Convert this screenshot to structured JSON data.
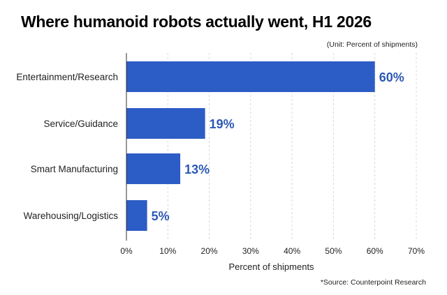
{
  "header": {
    "title": "Where humanoid robots actually went, H1 2026",
    "unit_note": "(Unit: Percent of shipments)"
  },
  "footer": {
    "source": "*Source: Counterpoint Research"
  },
  "colors": {
    "bar": "#2c5cc5",
    "data_label": "#2d58b4",
    "grid": "#d9d9d9",
    "axis": "#333333"
  },
  "chart_data": {
    "type": "bar",
    "orientation": "horizontal",
    "title": "Where humanoid robots actually went, H1 2026",
    "categories": [
      "Entertainment/Research",
      "Service/Guidance",
      "Smart Manufacturing",
      "Warehousing/Logistics"
    ],
    "values": [
      60,
      19,
      13,
      5
    ],
    "data_labels": [
      "60%",
      "19%",
      "13%",
      "5%"
    ],
    "xlabel": "Percent of shipments",
    "ylabel": "",
    "xlim": [
      0,
      70
    ],
    "ticks": [
      0,
      10,
      20,
      30,
      40,
      50,
      60,
      70
    ],
    "tick_labels": [
      "0%",
      "10%",
      "20%",
      "30%",
      "40%",
      "50%",
      "60%",
      "70%"
    ],
    "grid": "vertical dashed",
    "legend": "none"
  }
}
